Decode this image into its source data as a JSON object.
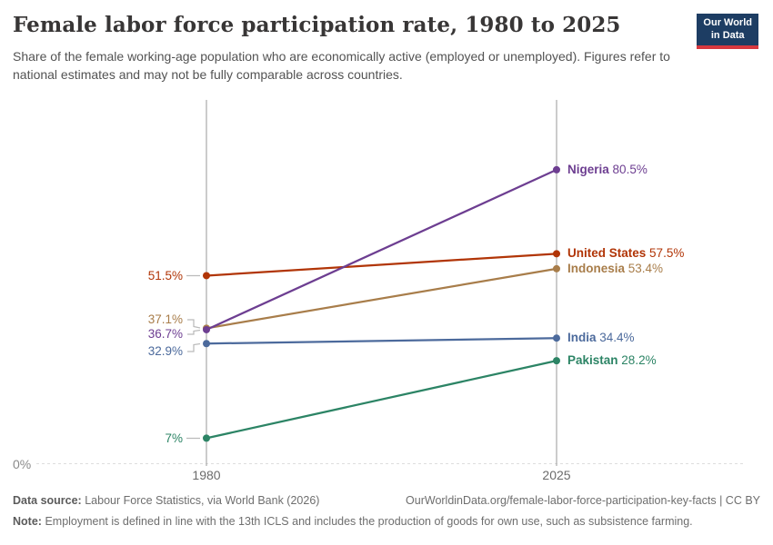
{
  "header": {
    "title": "Female labor force participation rate, 1980 to 2025",
    "subtitle": "Share of the female working-age population who are economically active (employed or unemployed). Figures refer to national estimates and may not be fully comparable across countries.",
    "logo": {
      "line1": "Our World",
      "line2": "in Data",
      "bg_color": "#1d3d63",
      "accent_color": "#d7383f"
    }
  },
  "chart_data": {
    "type": "line",
    "subtype": "slopechart",
    "title": "Female labor force participation rate, 1980 to 2025",
    "unit": "%",
    "x": [
      1980,
      2025
    ],
    "x_tick_labels": [
      "1980",
      "2025"
    ],
    "y_axis": {
      "zero_label": "0%",
      "min": 0,
      "max": 100,
      "gridline": "dashed-at-zero"
    },
    "series": [
      {
        "name": "Nigeria",
        "color": "#6d3e91",
        "values": [
          36.7,
          80.5
        ],
        "start_label": "36.7%",
        "end_label": "80.5%"
      },
      {
        "name": "United States",
        "color": "#b13507",
        "values": [
          51.5,
          57.5
        ],
        "start_label": "51.5%",
        "end_label": "57.5%"
      },
      {
        "name": "Indonesia",
        "color": "#a87d4a",
        "values": [
          37.1,
          53.4
        ],
        "start_label": "37.1%",
        "end_label": "53.4%"
      },
      {
        "name": "India",
        "color": "#4c6a9c",
        "values": [
          32.9,
          34.4
        ],
        "start_label": "32.9%",
        "end_label": "34.4%"
      },
      {
        "name": "Pakistan",
        "color": "#2c8465",
        "values": [
          7,
          28.2
        ],
        "start_label": "7%",
        "end_label": "28.2%"
      }
    ],
    "legend_position": "right-of-lines"
  },
  "footer": {
    "data_source_label": "Data source:",
    "data_source_text": "Labour Force Statistics, via World Bank (2026)",
    "link": "OurWorldinData.org/female-labor-force-participation-key-facts | CC BY",
    "note_label": "Note:",
    "note_text": "Employment is defined in line with the 13th ICLS and includes the production of goods for own use, such as subsistence farming."
  }
}
